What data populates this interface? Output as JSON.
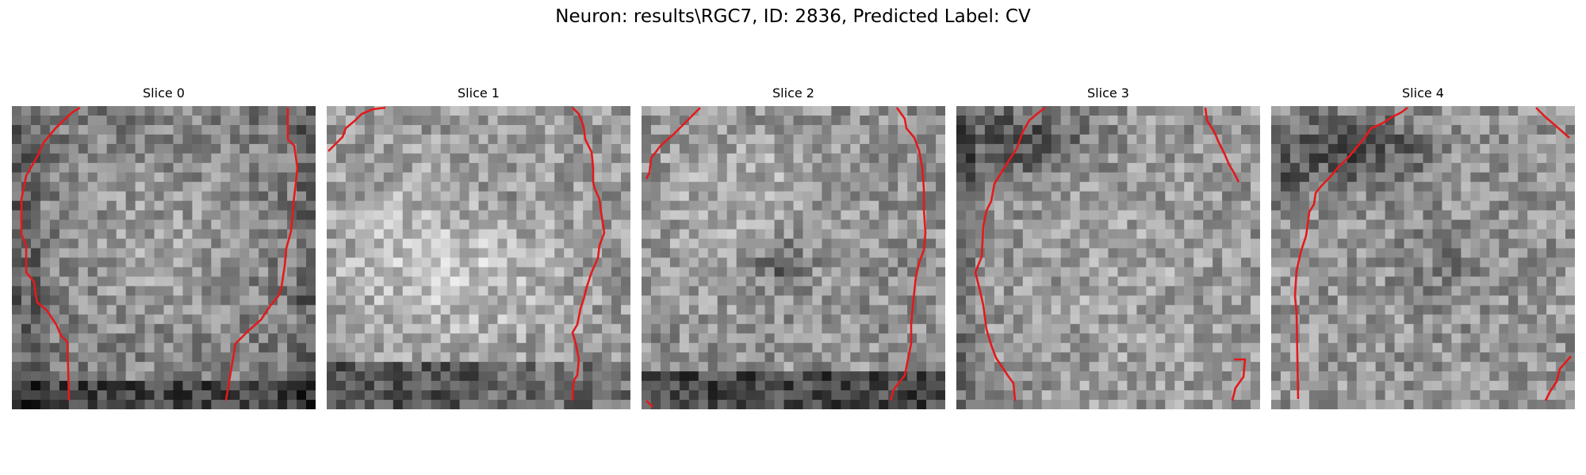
{
  "figure": {
    "title": "Neuron: results\\RGC7, ID: 2836, Predicted Label: CV"
  },
  "panels": [
    {
      "title": "Slice 0",
      "contour_color": "#e31a1c"
    },
    {
      "title": "Slice 1",
      "contour_color": "#e31a1c"
    },
    {
      "title": "Slice 2",
      "contour_color": "#e31a1c"
    },
    {
      "title": "Slice 3",
      "contour_color": "#e31a1c"
    },
    {
      "title": "Slice 4",
      "contour_color": "#e31a1c"
    }
  ],
  "colormap": "gray"
}
